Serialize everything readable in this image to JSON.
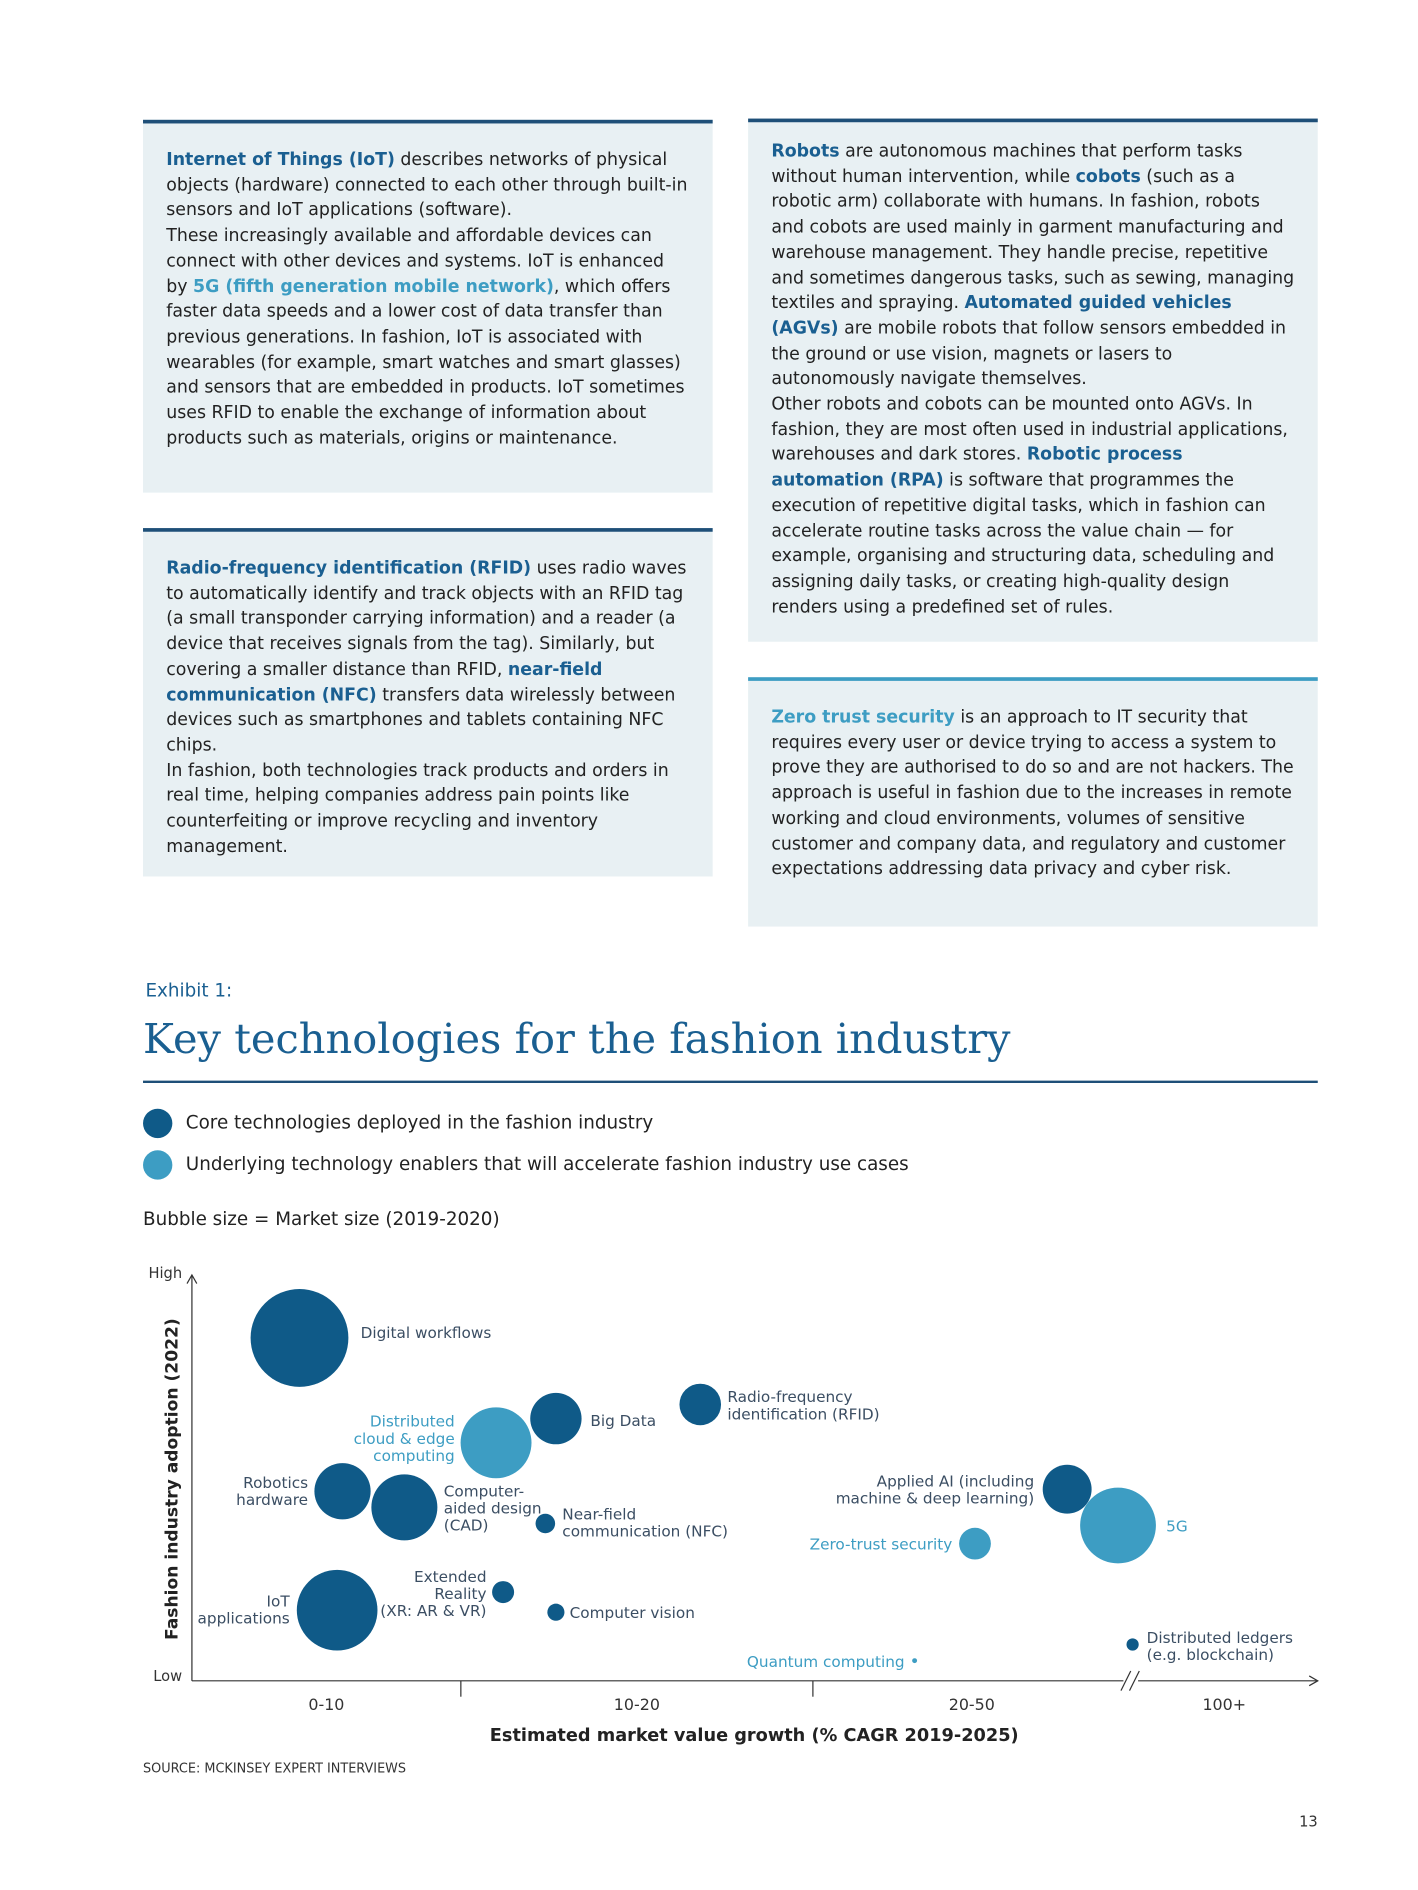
{
  "text_boxes": [
    {
      "segments": [
        {
          "text": "Internet of Things (IoT)",
          "emphasis": "dark"
        },
        {
          "text": " describes networks of physical objects (hardware) connected to each other through built-in sensors and IoT applications (software).\nThese increasingly available and affordable devices can connect with other devices and systems. IoT is enhanced by "
        },
        {
          "text": "5G (fifth generation mobile network)",
          "emphasis": "light"
        },
        {
          "text": ", which offers faster data speeds and a lower cost of data transfer than previous generations. In fashion, IoT is associated with wearables (for example, smart watches and smart glasses) and sensors that are embedded in products. IoT sometimes uses RFID to enable the exchange of information about products such as materials, origins or maintenance."
        }
      ]
    },
    {
      "segments": [
        {
          "text": "Radio-frequency identification (RFID)",
          "emphasis": "dark"
        },
        {
          "text": " uses radio waves to automatically identify and track objects with an RFID tag (a small transponder carrying information) and a reader (a device that receives signals from the tag). Similarly, but covering a smaller distance than RFID, "
        },
        {
          "text": "near-field communication (NFC)",
          "emphasis": "dark"
        },
        {
          "text": " transfers data wirelessly between devices such as smartphones and tablets containing NFC chips.\nIn fashion, both technologies track products and orders in real time, helping companies address pain points like counterfeiting or improve recycling and inventory management."
        }
      ]
    },
    {
      "segments": [
        {
          "text": "Robots",
          "emphasis": "dark"
        },
        {
          "text": " are autonomous machines that perform tasks without human intervention, while "
        },
        {
          "text": "cobots",
          "emphasis": "dark"
        },
        {
          "text": " (such as a robotic arm) collaborate with humans. In fashion, robots and cobots are used mainly in garment manufacturing and warehouse management. They handle precise, repetitive and sometimes dangerous tasks, such as sewing, managing textiles and spraying. "
        },
        {
          "text": "Automated guided vehicles (AGVs)",
          "emphasis": "dark"
        },
        {
          "text": " are mobile robots that follow sensors embedded in the ground or use vision, magnets or lasers to autonomously navigate themselves.\nOther robots and cobots can be mounted onto AGVs. In fashion, they are most often used in industrial applications, warehouses and dark stores. "
        },
        {
          "text": "Robotic process automation (RPA)",
          "emphasis": "dark"
        },
        {
          "text": " is software that programmes the execution of repetitive digital tasks, which in fashion can accelerate routine tasks across the value chain — for example, organising and structuring data, scheduling and assigning daily tasks, or creating high-quality design renders using a predefined set of rules."
        }
      ]
    },
    {
      "segments": [
        {
          "text": "Zero trust security",
          "emphasis": "light"
        },
        {
          "text": " is an approach to IT security that requires every user or device trying to access a system to prove they are authorised to do so and are not hackers. The approach is useful in fashion due to the increases in remote working and cloud environments, volumes of sensitive customer and company data, and regulatory and customer expectations addressing data privacy and cyber risk."
        }
      ]
    }
  ],
  "exhibit_label": "Exhibit 1:",
  "chart_data": {
    "type": "bubble",
    "title": "Key technologies for the fashion industry",
    "note": "Bubble size = Market size (2019-2020)",
    "x_label": "Estimated market value growth (% CAGR 2019-2025)",
    "y_label": "Fashion industry adoption (2022)",
    "xlim": [
      0,
      4
    ],
    "xticks": [
      {
        "value": 0.5,
        "label": "0-10"
      },
      {
        "value": 1.5,
        "label": "10-20"
      },
      {
        "value": 2.5,
        "label": "20-50"
      },
      {
        "value": 3.5,
        "label": "100+"
      }
    ],
    "ylim": [
      0,
      10
    ],
    "yticks": [
      {
        "value": 10,
        "label": "High"
      },
      {
        "value": 0,
        "label": "Low"
      }
    ],
    "series": [
      {
        "name": "Core technologies deployed in the fashion industry",
        "color": "#0f5a88",
        "labels": [
          "Digital workflows",
          "Big Data",
          "Radio-frequency\nidentification (RFID)",
          "Robotics\nhardware",
          "Computer-\naided design\n(CAD)",
          "Near-field\ncommunication (NFC)",
          "Applied AI (including\nmachine & deep learning)",
          "Extended\nReality\n(XR: AR & VR)",
          "IoT\napplications",
          "Computer vision",
          "Distributed ledgers\n(e.g. blockchain)"
        ],
        "x": [
          0.4,
          1.27,
          1.68,
          0.56,
          0.79,
          1.24,
          2.8,
          1.12,
          0.54,
          1.27,
          3.01
        ],
        "values": [
          8.5,
          6.5,
          6.85,
          4.7,
          4.3,
          3.9,
          4.75,
          2.2,
          1.75,
          1.7,
          0.9
        ],
        "sizes": [
          80,
          42,
          34,
          46,
          54,
          16,
          40,
          18,
          66,
          14,
          10
        ]
      },
      {
        "name": "Underlying technology enablers that will accelerate fashion industry use cases",
        "color": "#3d9dc3",
        "labels": [
          "Distributed\ncloud & edge\ncomputing",
          "5G",
          "Zero-trust security",
          "Quantum computing"
        ],
        "x": [
          1.1,
          2.96,
          2.51,
          2.32
        ],
        "values": [
          5.9,
          3.85,
          3.4,
          0.5
        ],
        "sizes": [
          58,
          62,
          26,
          4
        ]
      }
    ],
    "source": "SOURCE: MCKINSEY EXPERT INTERVIEWS"
  },
  "page_number": "13"
}
